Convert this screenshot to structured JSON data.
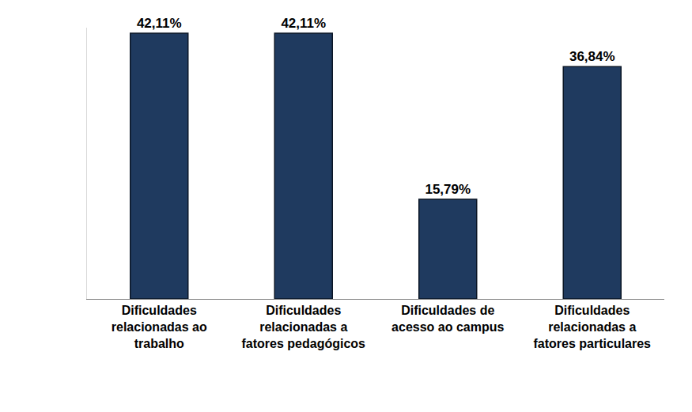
{
  "chart_data": {
    "type": "bar",
    "categories": [
      "Dificuldades relacionadas ao trabalho",
      "Dificuldades relacionadas a fatores pedagógicos",
      "Dificuldades de acesso ao campus",
      "Dificuldades relacionadas a fatores particulares"
    ],
    "values": [
      42.11,
      42.11,
      15.79,
      36.84
    ],
    "value_labels": [
      "42,11%",
      "42,11%",
      "15,79%",
      "36,84%"
    ],
    "color": "#1f3a5f",
    "ylim": [
      0,
      43
    ],
    "grid": false,
    "data_labels": true,
    "tick_labels": "x"
  }
}
